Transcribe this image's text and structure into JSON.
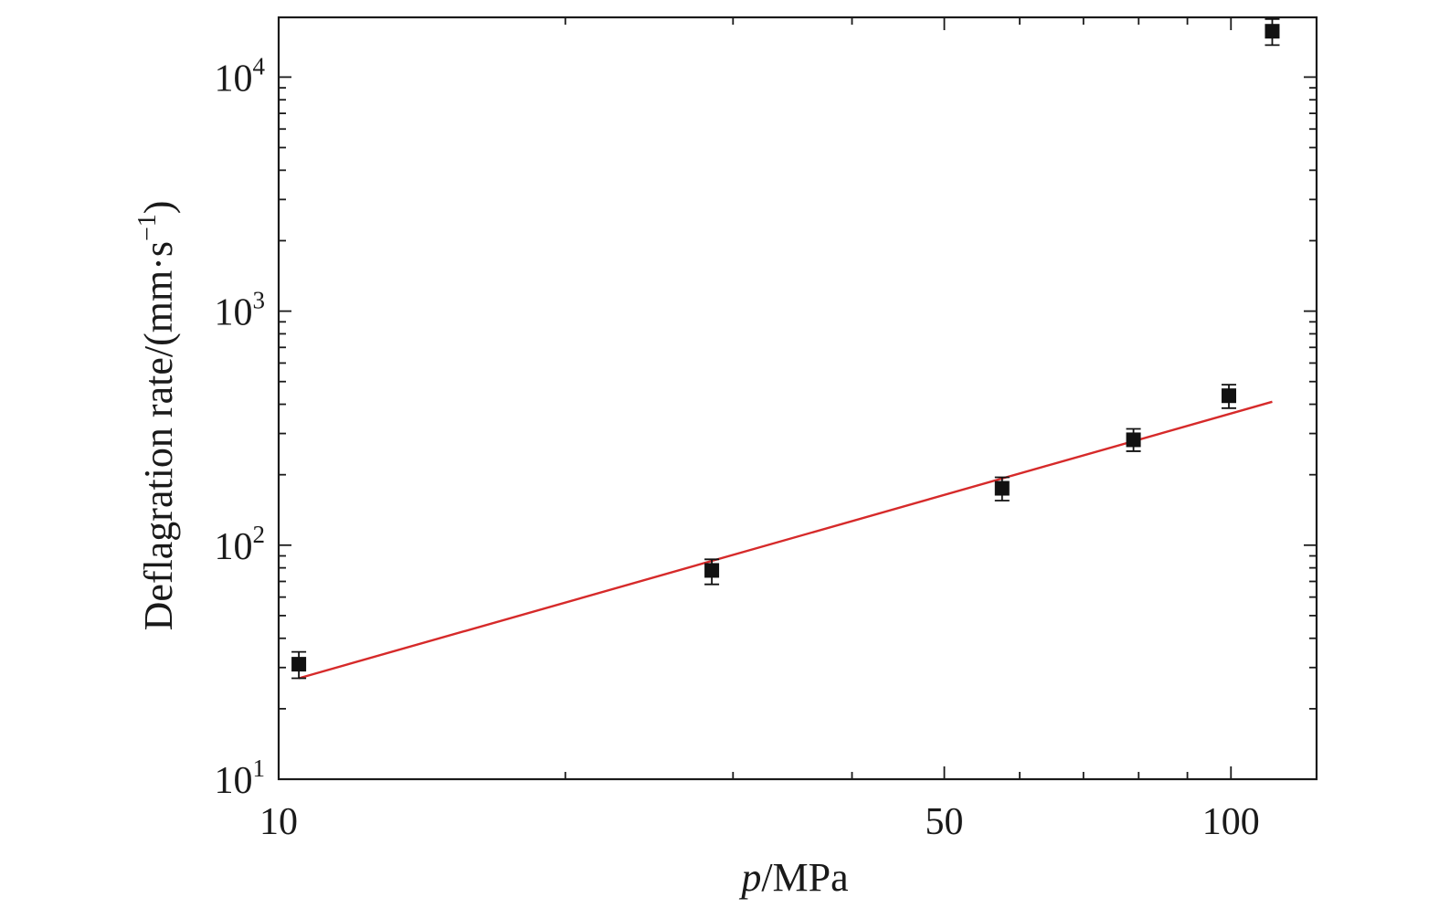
{
  "chart_data": {
    "type": "scatter",
    "title": "",
    "xlabel_italic": "p",
    "xlabel_rest": "/MPa",
    "ylabel_main": "Deflagration rate/(mm·s",
    "ylabel_sup": "−1",
    "ylabel_close": ")",
    "x_scale": "log",
    "y_scale": "log",
    "xlim": [
      10,
      123
    ],
    "ylim": [
      10,
      18000
    ],
    "x_ticks": [
      {
        "value": 10,
        "label": "10"
      },
      {
        "value": 50,
        "label": "50"
      },
      {
        "value": 100,
        "label": "100"
      }
    ],
    "y_ticks": [
      {
        "value": 10,
        "base": "10",
        "exp": "1"
      },
      {
        "value": 100,
        "base": "10",
        "exp": "2"
      },
      {
        "value": 1000,
        "base": "10",
        "exp": "3"
      },
      {
        "value": 10000,
        "base": "10",
        "exp": "4"
      }
    ],
    "grid": false,
    "series": [
      {
        "kind": "points",
        "color": "#111111",
        "marker": "square",
        "points": [
          {
            "x": 10.5,
            "y": 31,
            "err_low": 4,
            "err_high": 4
          },
          {
            "x": 28.5,
            "y": 78,
            "err_low": 10,
            "err_high": 9
          },
          {
            "x": 57.5,
            "y": 175,
            "err_low": 20,
            "err_high": 20
          },
          {
            "x": 79,
            "y": 282,
            "err_low": 30,
            "err_high": 32
          },
          {
            "x": 99.5,
            "y": 435,
            "err_low": 50,
            "err_high": 50
          },
          {
            "x": 110.5,
            "y": 15700,
            "err_low": 2000,
            "err_high": 2000
          }
        ]
      },
      {
        "kind": "fit",
        "color": "#d62a2a",
        "x": [
          10.5,
          110.5
        ],
        "y": [
          27,
          410
        ]
      }
    ]
  }
}
